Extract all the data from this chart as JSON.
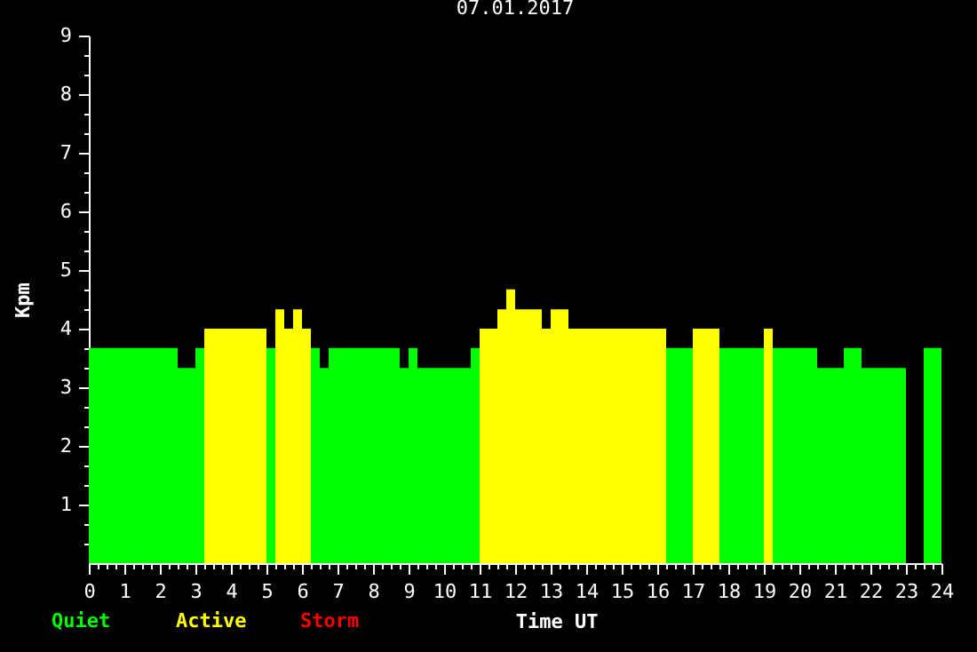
{
  "chart_data": {
    "type": "histogram",
    "title": "07.01.2017",
    "xlabel": "Time UT",
    "ylabel": "Kpm",
    "bins": [
      0,
      2.5,
      3,
      3.25,
      5,
      5.25,
      5.5,
      5.75,
      6,
      6.25,
      6.5,
      6.75,
      8.75,
      9,
      9.25,
      10.75,
      11,
      11.5,
      11.75,
      12,
      12.75,
      13,
      13.5,
      16.25,
      17,
      17.75,
      19,
      19.25,
      20.5,
      21.25,
      21.75,
      23,
      23.5,
      24
    ],
    "series": [
      {
        "name": "Quiet",
        "color": "#00ff00",
        "values": [
          3.67,
          3.33,
          3.67,
          null,
          3.67,
          null,
          null,
          null,
          null,
          3.67,
          3.33,
          3.67,
          3.33,
          3.67,
          3.33,
          3.67,
          null,
          null,
          null,
          null,
          null,
          null,
          null,
          3.67,
          null,
          3.67,
          null,
          3.67,
          3.33,
          3.67,
          3.33,
          null,
          3.67
        ]
      },
      {
        "name": "Active",
        "color": "#ffff00",
        "values": [
          null,
          null,
          null,
          4,
          null,
          4.33,
          4,
          4.33,
          4,
          null,
          null,
          null,
          null,
          null,
          null,
          null,
          4,
          4.33,
          4.67,
          4.33,
          4,
          4.33,
          4,
          null,
          4,
          null,
          4,
          null,
          null,
          null,
          null,
          null,
          null
        ]
      }
    ],
    "annotations": [
      "Storm"
    ],
    "xlim": [
      0,
      24
    ],
    "ylim": [
      0,
      9
    ],
    "xticks": [
      0,
      {
        "value": 0.25,
        "label": null
      },
      {
        "value": 0.5,
        "label": null
      },
      {
        "value": 0.75,
        "label": null
      },
      1,
      {
        "value": 1.25,
        "label": null
      },
      {
        "value": 1.5,
        "label": null
      },
      {
        "value": 1.75,
        "label": null
      },
      2,
      {
        "value": 2.25,
        "label": null
      },
      {
        "value": 2.5,
        "label": null
      },
      {
        "value": 2.75,
        "label": null
      },
      3,
      {
        "value": 3.25,
        "label": null
      },
      {
        "value": 3.5,
        "label": null
      },
      {
        "value": 3.75,
        "label": null
      },
      4,
      {
        "value": 4.25,
        "label": null
      },
      {
        "value": 4.5,
        "label": null
      },
      {
        "value": 4.75,
        "label": null
      },
      5,
      {
        "value": 5.25,
        "label": null
      },
      {
        "value": 5.5,
        "label": null
      },
      {
        "value": 5.75,
        "label": null
      },
      6,
      {
        "value": 6.25,
        "label": null
      },
      {
        "value": 6.5,
        "label": null
      },
      {
        "value": 6.75,
        "label": null
      },
      7,
      {
        "value": 7.25,
        "label": null
      },
      {
        "value": 7.5,
        "label": null
      },
      {
        "value": 7.75,
        "label": null
      },
      8,
      {
        "value": 8.25,
        "label": null
      },
      {
        "value": 8.5,
        "label": null
      },
      {
        "value": 8.75,
        "label": null
      },
      9,
      {
        "value": 9.25,
        "label": null
      },
      {
        "value": 9.5,
        "label": null
      },
      {
        "value": 9.75,
        "label": null
      },
      10,
      {
        "value": 10.25,
        "label": null
      },
      {
        "value": 10.5,
        "label": null
      },
      {
        "value": 10.75,
        "label": null
      },
      11,
      {
        "value": 11.25,
        "label": null
      },
      {
        "value": 11.5,
        "label": null
      },
      {
        "value": 11.75,
        "label": null
      },
      12,
      {
        "value": 12.25,
        "label": null
      },
      {
        "value": 12.5,
        "label": null
      },
      {
        "value": 12.75,
        "label": null
      },
      13,
      {
        "value": 13.25,
        "label": null
      },
      {
        "value": 13.5,
        "label": null
      },
      {
        "value": 13.75,
        "label": null
      },
      14,
      {
        "value": 14.25,
        "label": null
      },
      {
        "value": 14.5,
        "label": null
      },
      {
        "value": 14.75,
        "label": null
      },
      15,
      {
        "value": 15.25,
        "label": null
      },
      {
        "value": 15.5,
        "label": null
      },
      {
        "value": 15.75,
        "label": null
      },
      16,
      {
        "value": 16.25,
        "label": null
      },
      {
        "value": 16.5,
        "label": null
      },
      {
        "value": 16.75,
        "label": null
      },
      17,
      {
        "value": 17.25,
        "label": null
      },
      {
        "value": 17.5,
        "label": null
      },
      {
        "value": 17.75,
        "label": null
      },
      18,
      {
        "value": 18.25,
        "label": null
      },
      {
        "value": 18.5,
        "label": null
      },
      {
        "value": 18.75,
        "label": null
      },
      19,
      {
        "value": 19.25,
        "label": null
      },
      {
        "value": 19.5,
        "label": null
      },
      {
        "value": 19.75,
        "label": null
      },
      20,
      {
        "value": 20.25,
        "label": null
      },
      {
        "value": 20.5,
        "label": null
      },
      {
        "value": 20.75,
        "label": null
      },
      21,
      {
        "value": 21.25,
        "label": null
      },
      {
        "value": 21.5,
        "label": null
      },
      {
        "value": 21.75,
        "label": null
      },
      22,
      {
        "value": 22.25,
        "label": null
      },
      {
        "value": 22.5,
        "label": null
      },
      {
        "value": 22.75,
        "label": null
      },
      23,
      {
        "value": 23.25,
        "label": null
      },
      {
        "value": 23.5,
        "label": null
      },
      {
        "value": 23.75,
        "label": null
      },
      24
    ],
    "yticks": [
      {
        "value": 0.33,
        "label": null
      },
      {
        "value": 0.67,
        "label": null
      },
      1,
      {
        "value": 1.33,
        "label": null
      },
      {
        "value": 1.67,
        "label": null
      },
      2,
      {
        "value": 2.33,
        "label": null
      },
      {
        "value": 2.67,
        "label": null
      },
      3,
      {
        "value": 3.33,
        "label": null
      },
      {
        "value": 3.67,
        "label": null
      },
      4,
      {
        "value": 4.33,
        "label": null
      },
      {
        "value": 4.67,
        "label": null
      },
      5,
      {
        "value": 5.33,
        "label": null
      },
      {
        "value": 5.67,
        "label": null
      },
      6,
      {
        "value": 6.33,
        "label": null
      },
      {
        "value": 6.67,
        "label": null
      },
      7,
      {
        "value": 7.33,
        "label": null
      },
      {
        "value": 7.67,
        "label": null
      },
      8,
      {
        "value": 8.33,
        "label": null
      },
      {
        "value": 8.67,
        "label": null
      },
      9
    ],
    "legend": "bottom left"
  }
}
